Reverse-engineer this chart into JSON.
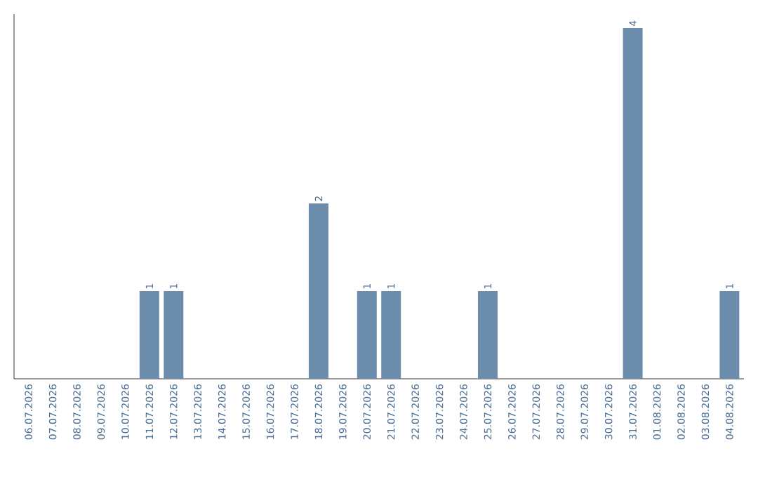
{
  "chart_data": {
    "type": "bar",
    "categories": [
      "06.07.2026",
      "07.07.2026",
      "08.07.2026",
      "09.07.2026",
      "10.07.2026",
      "11.07.2026",
      "12.07.2026",
      "13.07.2026",
      "14.07.2026",
      "15.07.2026",
      "16.07.2026",
      "17.07.2026",
      "18.07.2026",
      "19.07.2026",
      "20.07.2026",
      "21.07.2026",
      "22.07.2026",
      "23.07.2026",
      "24.07.2026",
      "25.07.2026",
      "26.07.2026",
      "27.07.2026",
      "28.07.2026",
      "29.07.2026",
      "30.07.2026",
      "31.07.2026",
      "01.08.2026",
      "02.08.2026",
      "03.08.2026",
      "04.08.2026"
    ],
    "values": [
      0,
      0,
      0,
      0,
      0,
      1,
      1,
      0,
      0,
      0,
      0,
      0,
      2,
      0,
      1,
      1,
      0,
      0,
      0,
      1,
      0,
      0,
      0,
      0,
      0,
      4,
      0,
      0,
      0,
      1
    ],
    "value_labels": [
      null,
      null,
      null,
      null,
      null,
      "1",
      "1",
      null,
      null,
      null,
      null,
      null,
      "2",
      null,
      "1",
      "1",
      null,
      null,
      null,
      "1",
      null,
      null,
      null,
      null,
      null,
      "4",
      null,
      null,
      null,
      "1"
    ],
    "color": "#6b8cab"
  }
}
